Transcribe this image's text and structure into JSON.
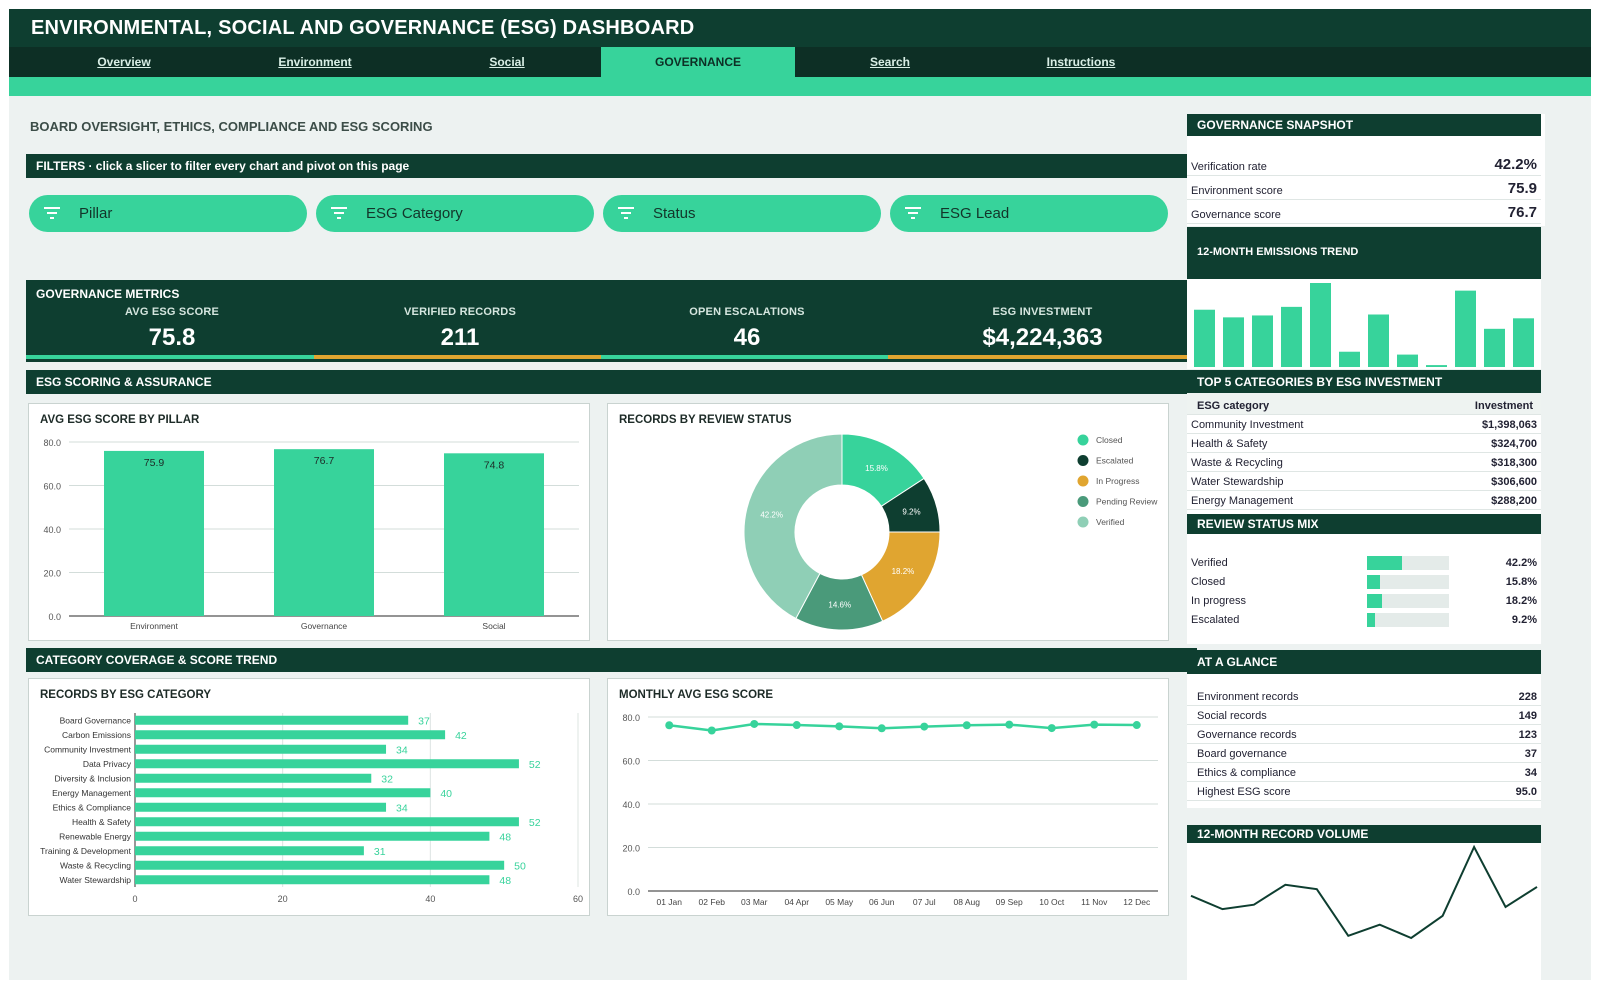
{
  "app": {
    "title": "ENVIRONMENTAL, SOCIAL AND GOVERNANCE (ESG) DASHBOARD"
  },
  "nav": {
    "tabs": [
      {
        "label": "Overview"
      },
      {
        "label": "Environment"
      },
      {
        "label": "Social"
      },
      {
        "label": "GOVERNANCE"
      },
      {
        "label": "Search"
      },
      {
        "label": "Instructions"
      }
    ],
    "active": "GOVERNANCE"
  },
  "page": {
    "subtitle": "BOARD OVERSIGHT, ETHICS, COMPLIANCE AND ESG SCORING"
  },
  "filters": {
    "header": "FILTERS  ·  click a slicer to filter every chart and pivot on this page",
    "slicers": [
      "Pillar",
      "ESG Category",
      "Status",
      "ESG Lead"
    ]
  },
  "metrics": {
    "header": "GOVERNANCE METRICS",
    "kpis": [
      {
        "label": "AVG ESG SCORE",
        "value": "75.8",
        "accent": "#37d39b"
      },
      {
        "label": "VERIFIED RECORDS",
        "value": "211",
        "accent": "#e0a530"
      },
      {
        "label": "OPEN ESCALATIONS",
        "value": "46",
        "accent": "#37d39b"
      },
      {
        "label": "ESG INVESTMENT",
        "value": "$4,224,363",
        "accent": "#e0a530"
      }
    ]
  },
  "sections": {
    "scoring": "ESG SCORING & ASSURANCE",
    "coverage": "CATEGORY COVERAGE & SCORE TREND"
  },
  "colors": {
    "accent": "#37d39b",
    "dark": "#0e3e30",
    "amber": "#e0a530"
  },
  "chart_data": [
    {
      "id": "pillar",
      "type": "bar",
      "title": "AVG ESG SCORE BY PILLAR",
      "categories": [
        "Environment",
        "Governance",
        "Social"
      ],
      "values": [
        75.9,
        76.7,
        74.8
      ],
      "value_labels": [
        "75.9",
        "76.7",
        "74.8"
      ],
      "ylim": [
        0,
        80
      ],
      "yticks": [
        "0.0",
        "20.0",
        "40.0",
        "60.0",
        "80.0"
      ],
      "grid": true
    },
    {
      "id": "status",
      "type": "pie",
      "title": "RECORDS BY REVIEW STATUS",
      "slices": [
        {
          "name": "Closed",
          "value": 15.8,
          "label": "15.8%",
          "color": "#37d39b"
        },
        {
          "name": "Escalated",
          "value": 9.2,
          "label": "9.2%",
          "color": "#0e3e30"
        },
        {
          "name": "In Progress",
          "value": 18.2,
          "label": "18.2%",
          "color": "#e0a530"
        },
        {
          "name": "Pending Review",
          "value": 14.6,
          "label": "14.6%",
          "color": "#4a9a7a"
        },
        {
          "name": "Verified",
          "value": 42.2,
          "label": "42.2%",
          "color": "#8fcfb6"
        }
      ],
      "legend": "right"
    },
    {
      "id": "category",
      "type": "bar",
      "orientation": "horizontal",
      "title": "RECORDS BY ESG CATEGORY",
      "categories": [
        "Board Governance",
        "Carbon Emissions",
        "Community Investment",
        "Data Privacy",
        "Diversity & Inclusion",
        "Energy Management",
        "Ethics & Compliance",
        "Health & Safety",
        "Renewable Energy",
        "Training & Development",
        "Waste & Recycling",
        "Water Stewardship"
      ],
      "values": [
        37,
        42,
        34,
        52,
        32,
        40,
        34,
        52,
        48,
        31,
        50,
        48
      ],
      "value_labels": [
        "37",
        "42",
        "34",
        "52",
        "32",
        "40",
        "34",
        "52",
        "48",
        "31",
        "50",
        "48"
      ],
      "xlim": [
        0,
        60
      ],
      "xticks": [
        "0",
        "20",
        "40",
        "60"
      ]
    },
    {
      "id": "monthly",
      "type": "line",
      "title": "MONTHLY AVG ESG SCORE",
      "x": [
        "01 Jan",
        "02 Feb",
        "03 Mar",
        "04 Apr",
        "05 May",
        "06 Jun",
        "07 Jul",
        "08 Aug",
        "09 Sep",
        "10 Oct",
        "11 Nov",
        "12 Dec"
      ],
      "values": [
        76.2,
        73.8,
        76.8,
        76.3,
        75.7,
        74.8,
        75.6,
        76.2,
        76.5,
        74.9,
        76.5,
        76.3
      ],
      "ylim": [
        0,
        80
      ],
      "yticks": [
        "0.0",
        "20.0",
        "40.0",
        "60.0",
        "80.0"
      ]
    },
    {
      "id": "emissions",
      "type": "bar",
      "title": "12-MONTH EMISSIONS TREND",
      "values": [
        60,
        52,
        54,
        63,
        88,
        16,
        55,
        13,
        2,
        80,
        40,
        51
      ]
    },
    {
      "id": "volume",
      "type": "line",
      "title": "12-MONTH RECORD VOLUME",
      "values": [
        40,
        34,
        36,
        45,
        43,
        22,
        27,
        21,
        31,
        62,
        35,
        44
      ]
    }
  ],
  "snapshot": {
    "header": "GOVERNANCE SNAPSHOT",
    "rows": [
      {
        "label": "Verification rate",
        "value": "42.2%"
      },
      {
        "label": "Environment score",
        "value": "75.9"
      },
      {
        "label": "Governance score",
        "value": "76.7"
      }
    ]
  },
  "top5": {
    "header": "TOP 5 CATEGORIES BY ESG INVESTMENT",
    "col_category": "ESG category",
    "col_investment": "Investment",
    "rows": [
      {
        "label": "Community Investment",
        "value": "$1,398,063"
      },
      {
        "label": "Health & Safety",
        "value": "$324,700"
      },
      {
        "label": "Waste & Recycling",
        "value": "$318,300"
      },
      {
        "label": "Water Stewardship",
        "value": "$306,600"
      },
      {
        "label": "Energy Management",
        "value": "$288,200"
      }
    ]
  },
  "mix": {
    "header": "REVIEW STATUS MIX",
    "rows": [
      {
        "label": "Verified",
        "value": "42.2%",
        "fraction": 0.422
      },
      {
        "label": "Closed",
        "value": "15.8%",
        "fraction": 0.158
      },
      {
        "label": "In progress",
        "value": "18.2%",
        "fraction": 0.182
      },
      {
        "label": "Escalated",
        "value": "9.2%",
        "fraction": 0.092
      }
    ]
  },
  "glance": {
    "header": "AT A GLANCE",
    "rows": [
      {
        "label": "Environment records",
        "value": "228"
      },
      {
        "label": "Social records",
        "value": "149"
      },
      {
        "label": "Governance records",
        "value": "123"
      },
      {
        "label": "Board governance",
        "value": "37"
      },
      {
        "label": "Ethics & compliance",
        "value": "34"
      },
      {
        "label": "Highest ESG score",
        "value": "95.0"
      }
    ]
  }
}
